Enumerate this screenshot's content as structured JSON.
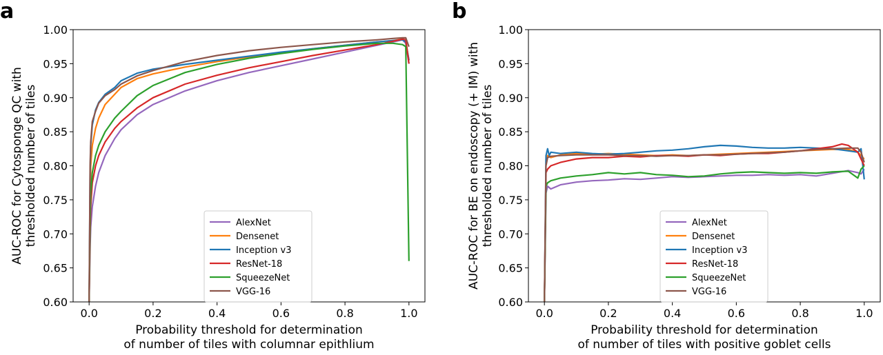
{
  "chart_data": [
    {
      "panel_label": "a",
      "type": "line",
      "xlabel": [
        "Probability threshold for determination",
        "of number of tiles with columnar epithlium"
      ],
      "ylabel": [
        "AUC-ROC for Cytosponge QC with",
        "thresholded number of tiles"
      ],
      "xlim": [
        -0.05,
        1.05
      ],
      "ylim": [
        0.6,
        1.0
      ],
      "xticks": [
        "0.0",
        "0.2",
        "0.4",
        "0.6",
        "0.8",
        "1.0"
      ],
      "yticks": [
        "0.60",
        "0.65",
        "0.70",
        "0.75",
        "0.80",
        "0.85",
        "0.90",
        "0.95",
        "1.00"
      ],
      "legend_position": "lower center",
      "series": [
        {
          "name": "AlexNet",
          "color": "#9467bd",
          "x": [
            0,
            0.003,
            0.005,
            0.01,
            0.02,
            0.03,
            0.05,
            0.08,
            0.1,
            0.15,
            0.2,
            0.3,
            0.4,
            0.5,
            0.6,
            0.7,
            0.8,
            0.9,
            0.95,
            0.98,
            0.99,
            1.0
          ],
          "y": [
            0.6,
            0.68,
            0.71,
            0.74,
            0.77,
            0.79,
            0.815,
            0.84,
            0.853,
            0.875,
            0.89,
            0.91,
            0.925,
            0.937,
            0.947,
            0.957,
            0.967,
            0.977,
            0.982,
            0.985,
            0.98,
            0.95
          ]
        },
        {
          "name": "Densenet",
          "color": "#ff7f0e",
          "x": [
            0,
            0.003,
            0.005,
            0.01,
            0.02,
            0.03,
            0.05,
            0.08,
            0.1,
            0.15,
            0.2,
            0.3,
            0.4,
            0.5,
            0.6,
            0.7,
            0.8,
            0.9,
            0.95,
            0.98,
            0.99,
            1.0
          ],
          "y": [
            0.6,
            0.76,
            0.8,
            0.83,
            0.855,
            0.87,
            0.89,
            0.905,
            0.915,
            0.928,
            0.935,
            0.945,
            0.953,
            0.96,
            0.966,
            0.972,
            0.977,
            0.982,
            0.984,
            0.986,
            0.983,
            0.955
          ]
        },
        {
          "name": "Inception v3",
          "color": "#1f77b4",
          "x": [
            0,
            0.003,
            0.005,
            0.01,
            0.02,
            0.03,
            0.05,
            0.08,
            0.1,
            0.15,
            0.2,
            0.3,
            0.4,
            0.5,
            0.6,
            0.7,
            0.8,
            0.9,
            0.95,
            0.98,
            0.99,
            1.0
          ],
          "y": [
            0.6,
            0.79,
            0.83,
            0.86,
            0.882,
            0.893,
            0.905,
            0.915,
            0.925,
            0.936,
            0.942,
            0.949,
            0.955,
            0.961,
            0.967,
            0.972,
            0.977,
            0.982,
            0.984,
            0.985,
            0.982,
            0.955
          ]
        },
        {
          "name": "ResNet-18",
          "color": "#d62728",
          "x": [
            0,
            0.003,
            0.005,
            0.01,
            0.02,
            0.03,
            0.05,
            0.08,
            0.1,
            0.15,
            0.2,
            0.3,
            0.4,
            0.5,
            0.6,
            0.7,
            0.8,
            0.9,
            0.95,
            0.98,
            0.99,
            1.0
          ],
          "y": [
            0.6,
            0.7,
            0.74,
            0.775,
            0.8,
            0.815,
            0.835,
            0.855,
            0.865,
            0.885,
            0.9,
            0.92,
            0.933,
            0.944,
            0.953,
            0.962,
            0.97,
            0.978,
            0.983,
            0.986,
            0.985,
            0.95
          ]
        },
        {
          "name": "SqueezeNet",
          "color": "#2ca02c",
          "x": [
            0,
            0.003,
            0.005,
            0.01,
            0.02,
            0.03,
            0.05,
            0.08,
            0.1,
            0.15,
            0.2,
            0.3,
            0.4,
            0.5,
            0.6,
            0.7,
            0.8,
            0.9,
            0.95,
            0.98,
            0.99,
            1.0
          ],
          "y": [
            0.6,
            0.72,
            0.76,
            0.79,
            0.815,
            0.83,
            0.85,
            0.87,
            0.88,
            0.903,
            0.918,
            0.937,
            0.949,
            0.958,
            0.965,
            0.971,
            0.976,
            0.98,
            0.98,
            0.978,
            0.975,
            0.66
          ]
        },
        {
          "name": "VGG-16",
          "color": "#8c564b",
          "x": [
            0,
            0.003,
            0.005,
            0.01,
            0.02,
            0.03,
            0.05,
            0.08,
            0.1,
            0.15,
            0.2,
            0.3,
            0.4,
            0.5,
            0.6,
            0.7,
            0.8,
            0.9,
            0.95,
            0.98,
            0.99,
            1.0
          ],
          "y": [
            0.6,
            0.8,
            0.835,
            0.865,
            0.88,
            0.892,
            0.903,
            0.912,
            0.92,
            0.932,
            0.94,
            0.953,
            0.962,
            0.969,
            0.974,
            0.978,
            0.982,
            0.985,
            0.987,
            0.988,
            0.988,
            0.975
          ]
        }
      ]
    },
    {
      "panel_label": "b",
      "type": "line",
      "xlabel": [
        "Probability threshold for determination",
        "of number of tiles with positive goblet cells"
      ],
      "ylabel": [
        "AUC-ROC for BE on endoscopy (+ IM) with",
        "thresholded number of tiles"
      ],
      "xlim": [
        -0.05,
        1.05
      ],
      "ylim": [
        0.6,
        1.0
      ],
      "xticks": [
        "0.0",
        "0.2",
        "0.4",
        "0.6",
        "0.8",
        "1.0"
      ],
      "yticks": [
        "0.60",
        "0.65",
        "0.70",
        "0.75",
        "0.80",
        "0.85",
        "0.90",
        "0.95",
        "1.00"
      ],
      "legend_position": "lower center",
      "series": [
        {
          "name": "AlexNet",
          "color": "#9467bd",
          "x": [
            0,
            0.005,
            0.01,
            0.02,
            0.05,
            0.1,
            0.15,
            0.2,
            0.25,
            0.3,
            0.35,
            0.4,
            0.45,
            0.5,
            0.55,
            0.6,
            0.65,
            0.7,
            0.75,
            0.8,
            0.85,
            0.9,
            0.95,
            0.98,
            0.99,
            1.0
          ],
          "y": [
            0.6,
            0.76,
            0.77,
            0.766,
            0.772,
            0.776,
            0.778,
            0.779,
            0.781,
            0.78,
            0.782,
            0.784,
            0.783,
            0.784,
            0.785,
            0.786,
            0.786,
            0.787,
            0.786,
            0.787,
            0.785,
            0.789,
            0.793,
            0.79,
            0.788,
            0.795
          ]
        },
        {
          "name": "Densenet",
          "color": "#ff7f0e",
          "x": [
            0,
            0.005,
            0.01,
            0.02,
            0.05,
            0.1,
            0.15,
            0.2,
            0.25,
            0.3,
            0.35,
            0.4,
            0.45,
            0.5,
            0.55,
            0.6,
            0.65,
            0.7,
            0.75,
            0.8,
            0.85,
            0.9,
            0.95,
            0.98,
            0.99,
            1.0
          ],
          "y": [
            0.6,
            0.81,
            0.815,
            0.812,
            0.816,
            0.818,
            0.817,
            0.818,
            0.817,
            0.816,
            0.815,
            0.816,
            0.815,
            0.816,
            0.817,
            0.818,
            0.819,
            0.82,
            0.821,
            0.822,
            0.823,
            0.824,
            0.824,
            0.82,
            0.815,
            0.81
          ]
        },
        {
          "name": "Inception v3",
          "color": "#1f77b4",
          "x": [
            0,
            0.005,
            0.01,
            0.015,
            0.02,
            0.05,
            0.1,
            0.15,
            0.2,
            0.25,
            0.3,
            0.35,
            0.4,
            0.45,
            0.5,
            0.55,
            0.6,
            0.65,
            0.7,
            0.75,
            0.8,
            0.85,
            0.9,
            0.95,
            0.98,
            0.99,
            1.0
          ],
          "y": [
            0.6,
            0.815,
            0.825,
            0.815,
            0.82,
            0.818,
            0.82,
            0.818,
            0.817,
            0.818,
            0.82,
            0.822,
            0.823,
            0.825,
            0.828,
            0.83,
            0.829,
            0.827,
            0.826,
            0.826,
            0.827,
            0.826,
            0.825,
            0.822,
            0.82,
            0.825,
            0.78
          ]
        },
        {
          "name": "ResNet-18",
          "color": "#d62728",
          "x": [
            0,
            0.005,
            0.01,
            0.02,
            0.05,
            0.1,
            0.15,
            0.2,
            0.25,
            0.3,
            0.35,
            0.4,
            0.45,
            0.5,
            0.55,
            0.6,
            0.65,
            0.7,
            0.75,
            0.8,
            0.85,
            0.9,
            0.93,
            0.95,
            0.98,
            0.99,
            1.0
          ],
          "y": [
            0.6,
            0.79,
            0.795,
            0.8,
            0.805,
            0.81,
            0.812,
            0.812,
            0.814,
            0.813,
            0.815,
            0.815,
            0.814,
            0.816,
            0.815,
            0.817,
            0.818,
            0.818,
            0.82,
            0.822,
            0.825,
            0.828,
            0.832,
            0.83,
            0.82,
            0.81,
            0.8
          ]
        },
        {
          "name": "SqueezeNet",
          "color": "#2ca02c",
          "x": [
            0,
            0.005,
            0.01,
            0.02,
            0.05,
            0.1,
            0.15,
            0.2,
            0.25,
            0.3,
            0.35,
            0.4,
            0.45,
            0.5,
            0.55,
            0.6,
            0.65,
            0.7,
            0.75,
            0.8,
            0.85,
            0.9,
            0.95,
            0.98,
            0.99,
            1.0
          ],
          "y": [
            0.6,
            0.77,
            0.775,
            0.778,
            0.782,
            0.785,
            0.787,
            0.79,
            0.788,
            0.79,
            0.787,
            0.786,
            0.784,
            0.785,
            0.788,
            0.79,
            0.791,
            0.79,
            0.789,
            0.79,
            0.789,
            0.791,
            0.792,
            0.782,
            0.795,
            0.8
          ]
        },
        {
          "name": "VGG-16",
          "color": "#8c564b",
          "x": [
            0,
            0.005,
            0.01,
            0.02,
            0.05,
            0.1,
            0.15,
            0.2,
            0.25,
            0.3,
            0.35,
            0.4,
            0.45,
            0.5,
            0.55,
            0.6,
            0.65,
            0.7,
            0.75,
            0.8,
            0.85,
            0.9,
            0.95,
            0.98,
            0.99,
            1.0
          ],
          "y": [
            0.6,
            0.8,
            0.812,
            0.814,
            0.815,
            0.816,
            0.816,
            0.816,
            0.815,
            0.815,
            0.814,
            0.815,
            0.815,
            0.816,
            0.816,
            0.817,
            0.818,
            0.819,
            0.82,
            0.822,
            0.824,
            0.825,
            0.826,
            0.826,
            0.82,
            0.805
          ]
        }
      ]
    }
  ]
}
